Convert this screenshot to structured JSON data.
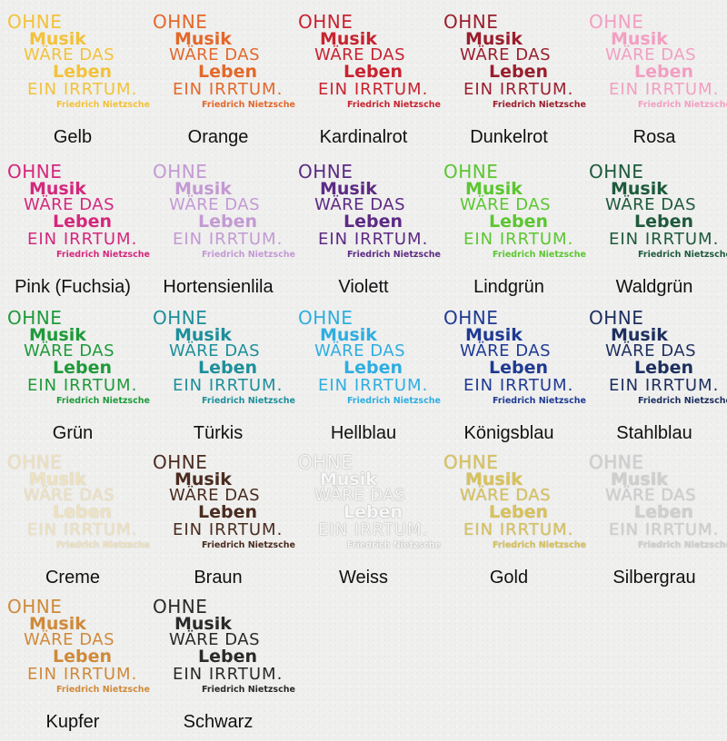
{
  "quote": {
    "line1": "OHNE",
    "line2": "Musik",
    "line3": "WÄRE DAS",
    "line4": "Leben",
    "line5": "EIN IRRTUM.",
    "author": "Friedrich Nietzsche"
  },
  "swatches": [
    {
      "name": "Gelb",
      "color": "#f2c23a"
    },
    {
      "name": "Orange",
      "color": "#e3682a"
    },
    {
      "name": "Kardinalrot",
      "color": "#c8232f"
    },
    {
      "name": "Dunkelrot",
      "color": "#9a1e2c"
    },
    {
      "name": "Rosa",
      "color": "#f29fc1"
    },
    {
      "name": "Pink (Fuchsia)",
      "color": "#d4287c"
    },
    {
      "name": "Hortensienlila",
      "color": "#c39ad3"
    },
    {
      "name": "Violett",
      "color": "#5c2a83"
    },
    {
      "name": "Lindgrün",
      "color": "#5cc631"
    },
    {
      "name": "Waldgrün",
      "color": "#1e5a3c"
    },
    {
      "name": "Grün",
      "color": "#1f9a3a"
    },
    {
      "name": "Türkis",
      "color": "#1d8f9a"
    },
    {
      "name": "Hellblau",
      "color": "#2eaee0"
    },
    {
      "name": "Königsblau",
      "color": "#1f3a93"
    },
    {
      "name": "Stahlblau",
      "color": "#1d2f5f"
    },
    {
      "name": "Creme",
      "color": "#efe2bf"
    },
    {
      "name": "Braun",
      "color": "#4a2c1f"
    },
    {
      "name": "Weiss",
      "color": "#f7f7f7"
    },
    {
      "name": "Gold",
      "color": "#d8c25a"
    },
    {
      "name": "Silbergrau",
      "color": "#cfcfcf"
    },
    {
      "name": "Kupfer",
      "color": "#cf8a3a"
    },
    {
      "name": "Schwarz",
      "color": "#2a2a2a"
    }
  ]
}
